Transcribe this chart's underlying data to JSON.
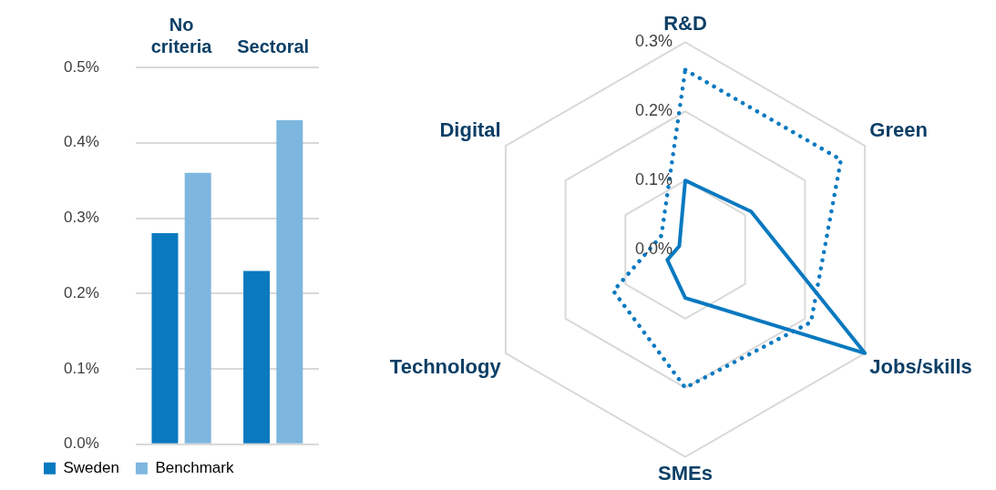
{
  "chart_data": [
    {
      "type": "bar",
      "categories": [
        "No criteria",
        "Sectoral"
      ],
      "series": [
        {
          "name": "Sweden",
          "color": "#0979c0",
          "values": [
            0.28,
            0.23
          ]
        },
        {
          "name": "Benchmark",
          "color": "#7db6de",
          "values": [
            0.36,
            0.43
          ]
        }
      ],
      "ylim": [
        0,
        0.5
      ],
      "yticks": [
        {
          "value": 0,
          "label": "0.0%"
        },
        {
          "value": 0.1,
          "label": "0.1%"
        },
        {
          "value": 0.2,
          "label": "0.2%"
        },
        {
          "value": 0.3,
          "label": "0.3%"
        },
        {
          "value": 0.4,
          "label": "0.4%"
        },
        {
          "value": 0.5,
          "label": "0.5%"
        }
      ],
      "grid": "y",
      "legend": "bottom"
    },
    {
      "type": "radar",
      "categories": [
        "R&D",
        "Green",
        "Jobs/skills",
        "SMEs",
        "Technology",
        "Digital"
      ],
      "series": [
        {
          "color": "#0979c0",
          "line_style": "solid",
          "values": [
            0.1,
            0.11,
            0.3,
            0.07,
            0.03,
            0.01
          ]
        },
        {
          "color": "#0979c0",
          "line_style": "dotted",
          "values": [
            0.26,
            0.26,
            0.21,
            0.2,
            0.12,
            0.04
          ]
        }
      ],
      "ylim": [
        0,
        0.3
      ],
      "yticks": [
        {
          "value": 0,
          "label": "0.0%"
        },
        {
          "value": 0.1,
          "label": "0.1%"
        },
        {
          "value": 0.2,
          "label": "0.2%"
        },
        {
          "value": 0.3,
          "label": "0.3%"
        }
      ],
      "grid": true,
      "marker": "none",
      "legend": false
    }
  ]
}
